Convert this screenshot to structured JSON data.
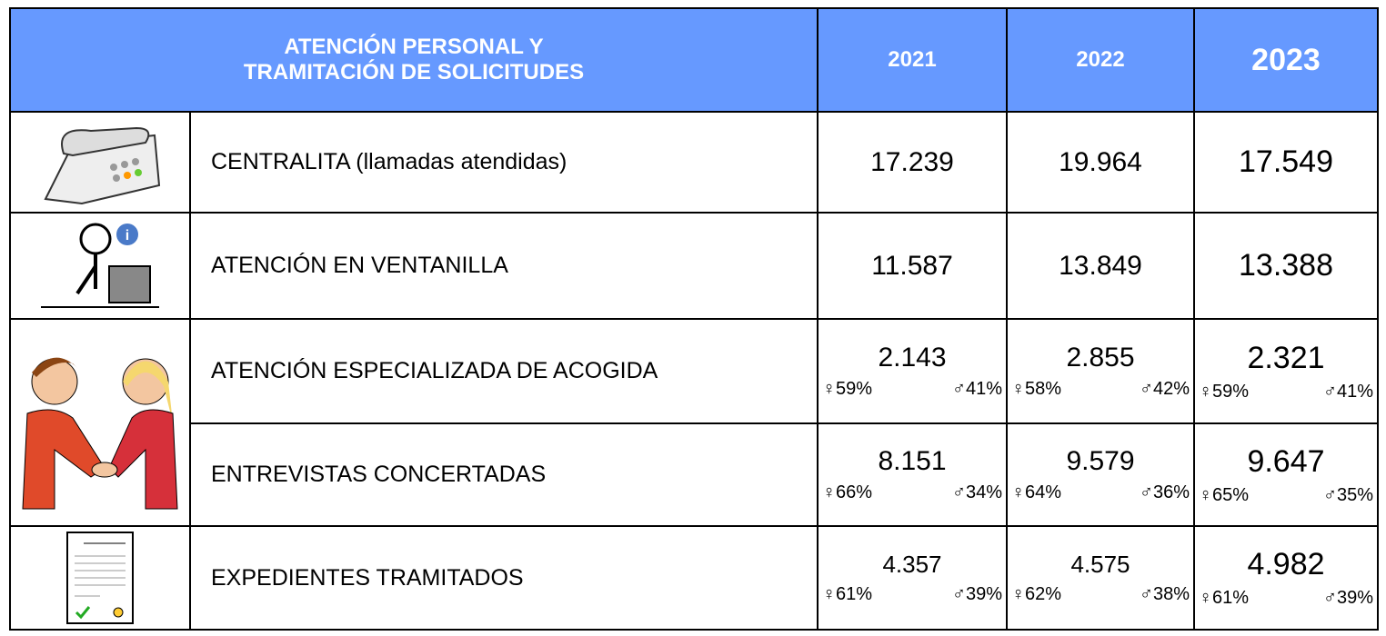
{
  "header": {
    "title": [
      "ATENCIÓN PERSONAL Y",
      "TRAMITACIÓN DE SOLICITUDES"
    ],
    "years": [
      "2021",
      "2022",
      "2023"
    ]
  },
  "table": {
    "rows": [
      {
        "label": "CENTRALITA (llamadas atendidas)",
        "values": [
          "17.239",
          "19.964",
          "17.549"
        ]
      },
      {
        "label": "ATENCIÓN EN VENTANILLA",
        "values": [
          "11.587",
          "13.849",
          "13.388"
        ]
      },
      {
        "label": "ATENCIÓN ESPECIALIZADA DE ACOGIDA",
        "values": [
          "2.143",
          "2.855",
          "2.321"
        ],
        "female": [
          "♀59%",
          "♀58%",
          "♀59%"
        ],
        "male": [
          "♂41%",
          "♂42%",
          "♂41%"
        ]
      },
      {
        "label": "ENTREVISTAS CONCERTADAS",
        "values": [
          "8.151",
          "9.579",
          "9.647"
        ],
        "female": [
          "♀66%",
          "♀64%",
          "♀65%"
        ],
        "male": [
          "♂34%",
          "♂36%",
          "♂35%"
        ]
      },
      {
        "label": "EXPEDIENTES TRAMITADOS",
        "values": [
          "4.357",
          "4.575",
          "4.982"
        ],
        "female": [
          "♀61%",
          "♀62%",
          "♀61%"
        ],
        "male": [
          "♂39%",
          "♂38%",
          "♂39%"
        ]
      }
    ]
  }
}
